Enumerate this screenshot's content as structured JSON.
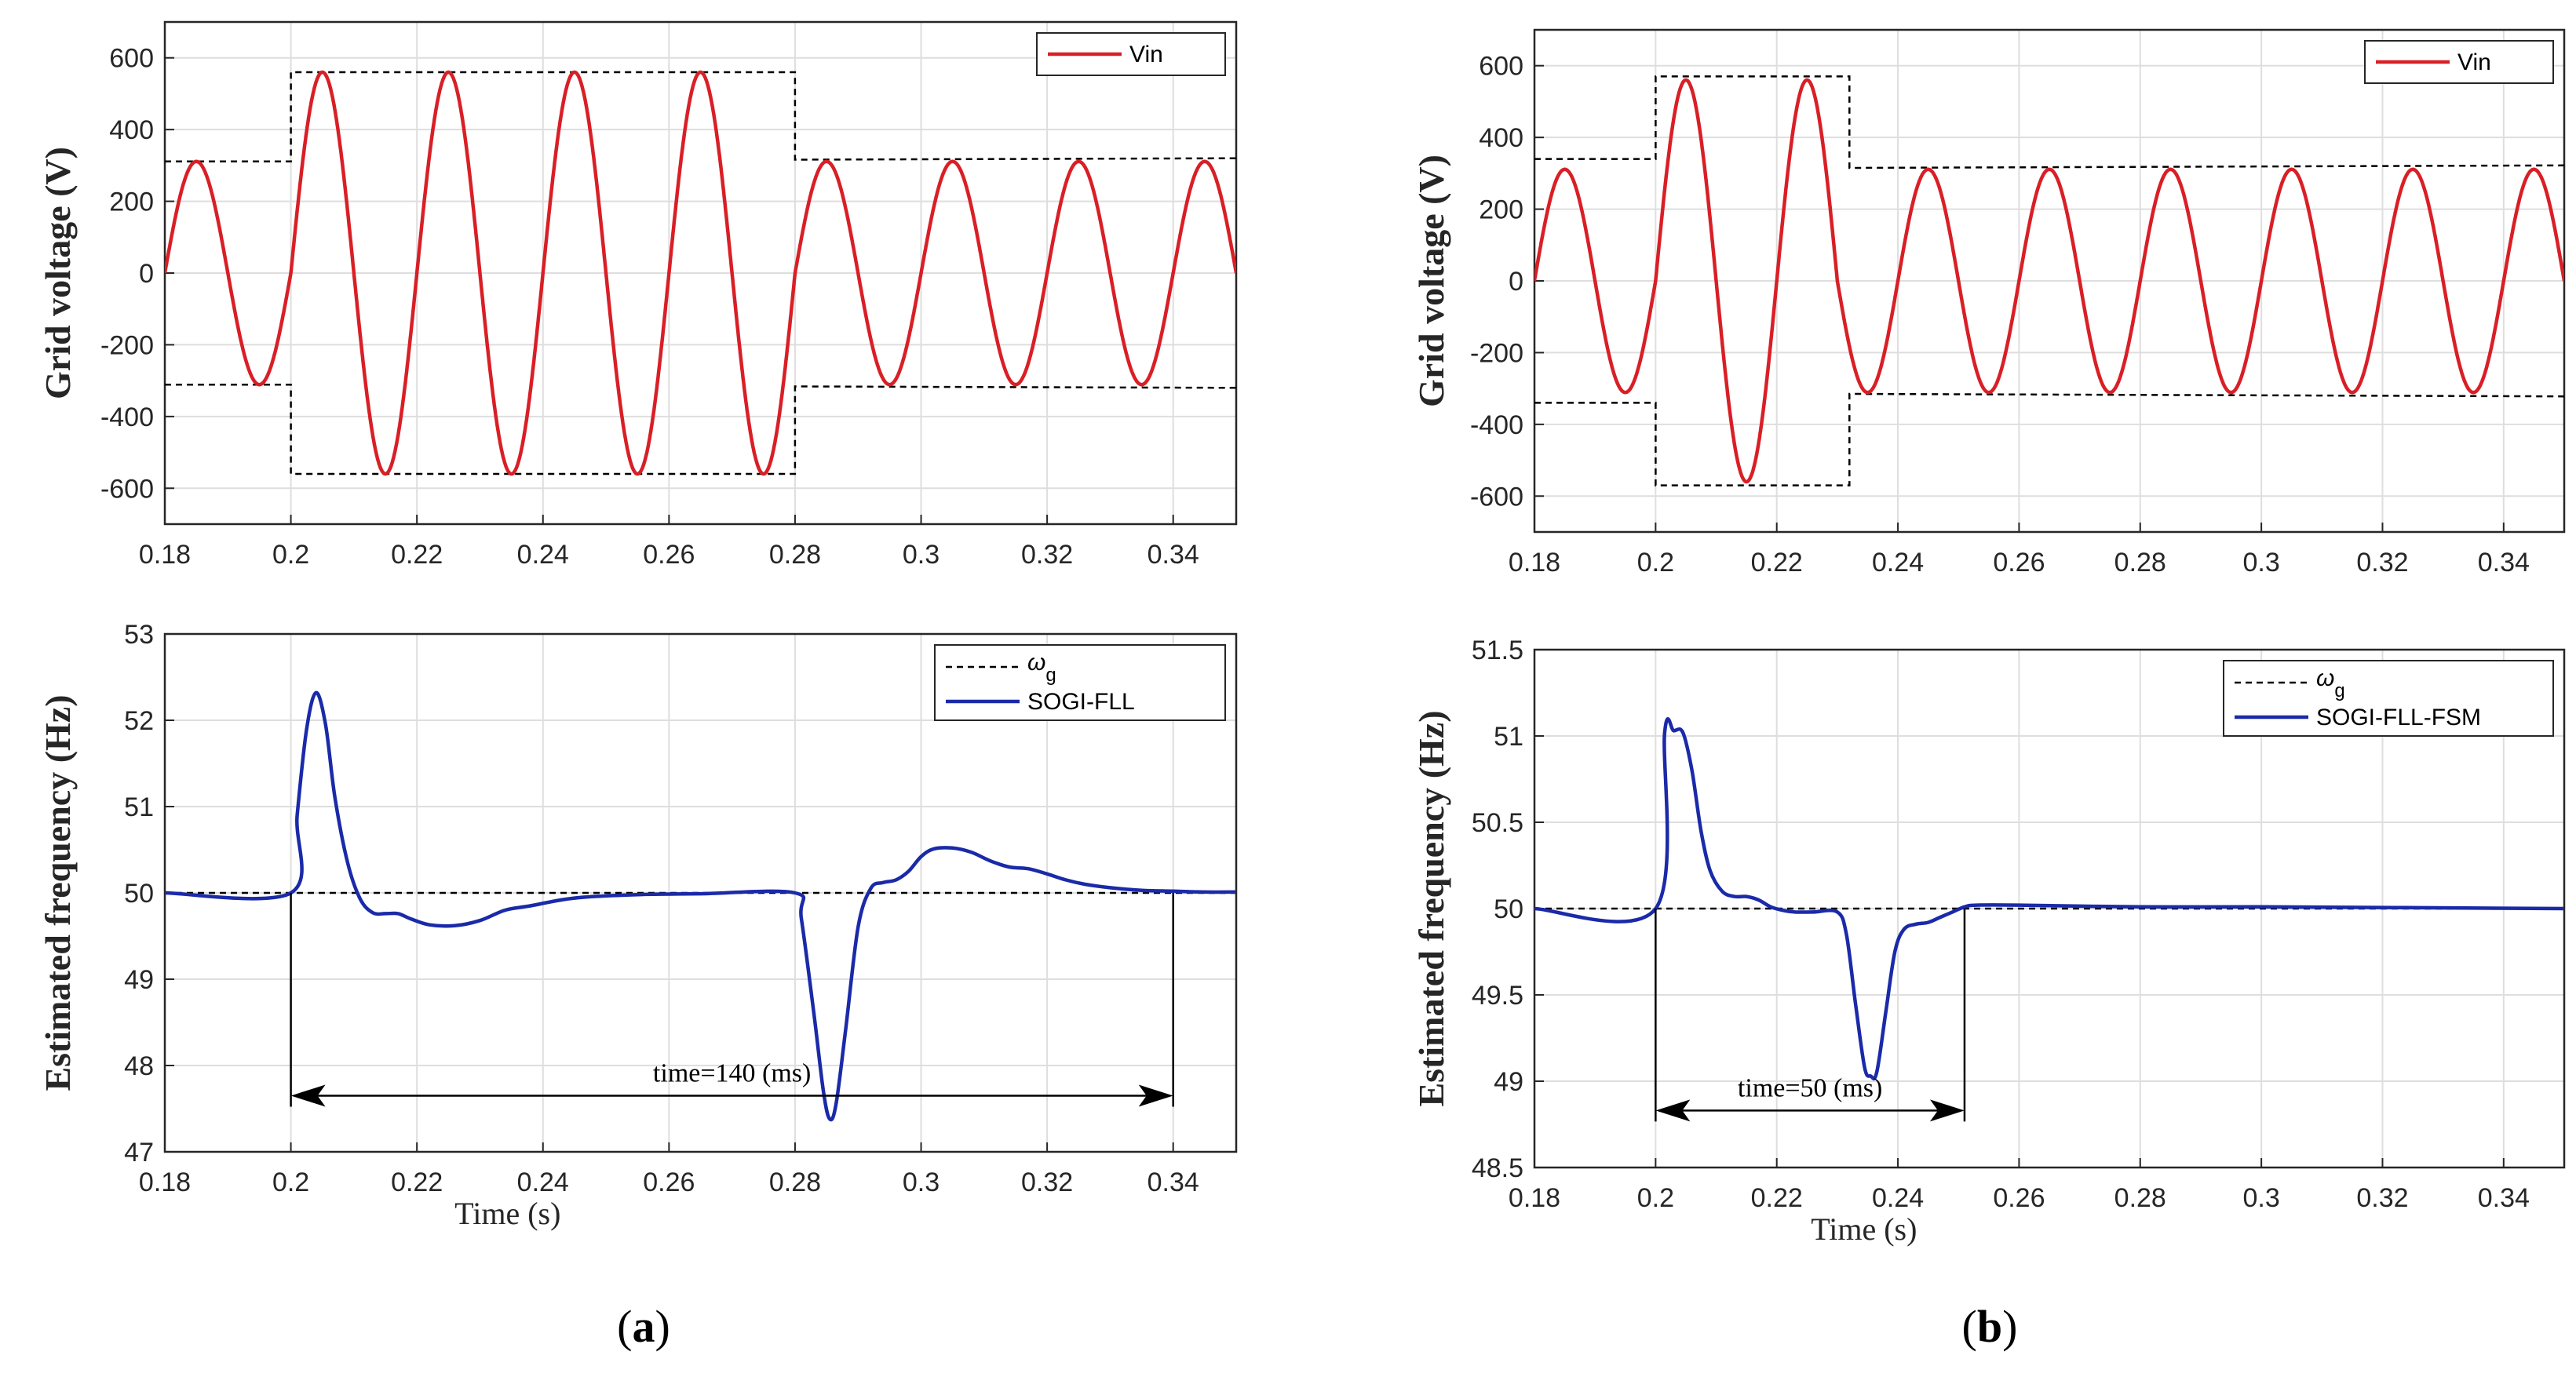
{
  "colors": {
    "vin": "#d91f26",
    "freq": "#1a2aa8",
    "ref": "#000000",
    "grid": "#dedede"
  },
  "chart_data": [
    {
      "type": "line",
      "key": "a_top",
      "ylabel": "Grid voltage (V)",
      "xlabel": "",
      "xlim": [
        0.18,
        0.35
      ],
      "ylim": [
        -700,
        700
      ],
      "xticks": [
        0.18,
        0.2,
        0.22,
        0.24,
        0.26,
        0.28,
        0.3,
        0.32,
        0.34
      ],
      "xtick_labels": [
        "0.18",
        "0.2",
        "0.22",
        "0.24",
        "0.26",
        "0.28",
        "0.3",
        "0.32",
        "0.34"
      ],
      "yticks": [
        -600,
        -400,
        -200,
        0,
        200,
        400,
        600
      ],
      "ytick_labels": [
        "-600",
        "-400",
        "-200",
        "0",
        "200",
        "400",
        "600"
      ],
      "grid": true,
      "legend": {
        "position": "top-right",
        "entries": [
          {
            "label": "Vin",
            "style": "vin"
          }
        ]
      },
      "signal": {
        "kind": "sine",
        "frequency_hz": 50,
        "segments": [
          [
            0.18,
            0.2,
            311
          ],
          [
            0.2,
            0.28,
            560
          ],
          [
            0.28,
            0.35,
            311
          ]
        ]
      },
      "envelope": [
        [
          0.18,
          311
        ],
        [
          0.2,
          311
        ],
        [
          0.2,
          560
        ],
        [
          0.28,
          560
        ],
        [
          0.28,
          316
        ],
        [
          0.35,
          320
        ]
      ]
    },
    {
      "type": "line",
      "key": "a_bot",
      "ylabel": "Estimated frequency (Hz)",
      "xlabel": "Time (s)",
      "xlim": [
        0.18,
        0.35
      ],
      "ylim": [
        47,
        53
      ],
      "xticks": [
        0.18,
        0.2,
        0.22,
        0.24,
        0.26,
        0.28,
        0.3,
        0.32,
        0.34
      ],
      "xtick_labels": [
        "0.18",
        "0.2",
        "0.22",
        "0.24",
        "0.26",
        "0.28",
        "0.3",
        "0.32",
        "0.34"
      ],
      "yticks": [
        47,
        48,
        49,
        50,
        51,
        52,
        53
      ],
      "ytick_labels": [
        "47",
        "48",
        "49",
        "50",
        "51",
        "52",
        "53"
      ],
      "grid": true,
      "legend": {
        "position": "top-right",
        "entries": [
          {
            "label": "ω",
            "sub": "g",
            "style": "ref"
          },
          {
            "label": "SOGI-FLL",
            "style": "freq"
          }
        ]
      },
      "reference": 50,
      "series": [
        {
          "name": "SOGI-FLL",
          "x": [
            0.18,
            0.2,
            0.201,
            0.2025,
            0.204,
            0.2055,
            0.207,
            0.209,
            0.211,
            0.213,
            0.215,
            0.217,
            0.219,
            0.222,
            0.226,
            0.23,
            0.234,
            0.238,
            0.245,
            0.255,
            0.265,
            0.28,
            0.281,
            0.283,
            0.2845,
            0.2855,
            0.2865,
            0.288,
            0.29,
            0.292,
            0.294,
            0.296,
            0.298,
            0.3,
            0.302,
            0.305,
            0.308,
            0.311,
            0.314,
            0.317,
            0.32,
            0.323,
            0.326,
            0.33,
            0.335,
            0.34,
            0.345,
            0.35
          ],
          "values": [
            50,
            50,
            50.9,
            51.9,
            52.32,
            51.95,
            51.1,
            50.35,
            49.93,
            49.77,
            49.76,
            49.76,
            49.7,
            49.63,
            49.62,
            49.68,
            49.8,
            49.85,
            49.94,
            49.98,
            49.99,
            50,
            49.7,
            48.6,
            47.7,
            47.38,
            47.55,
            48.4,
            49.6,
            50.05,
            50.12,
            50.15,
            50.25,
            50.42,
            50.51,
            50.52,
            50.47,
            50.37,
            50.3,
            50.28,
            50.22,
            50.15,
            50.1,
            50.06,
            50.03,
            50.02,
            50.01,
            50.01
          ]
        }
      ],
      "annotation": {
        "text": "time=140 (ms)",
        "x1": 0.2,
        "x2": 0.34,
        "y": 47.65,
        "bracket_top": 50
      }
    },
    {
      "type": "line",
      "key": "b_top",
      "ylabel": "Grid voltage (V)",
      "xlabel": "",
      "xlim": [
        0.18,
        0.35
      ],
      "ylim": [
        -700,
        700
      ],
      "xticks": [
        0.18,
        0.2,
        0.22,
        0.24,
        0.26,
        0.28,
        0.3,
        0.32,
        0.34
      ],
      "xtick_labels": [
        "0.18",
        "0.2",
        "0.22",
        "0.24",
        "0.26",
        "0.28",
        "0.3",
        "0.32",
        "0.34"
      ],
      "yticks": [
        -600,
        -400,
        -200,
        0,
        200,
        400,
        600
      ],
      "ytick_labels": [
        "-600",
        "-400",
        "-200",
        "0",
        "200",
        "400",
        "600"
      ],
      "grid": true,
      "legend": {
        "position": "top-right",
        "entries": [
          {
            "label": "Vin",
            "style": "vin"
          }
        ]
      },
      "signal": {
        "kind": "sine",
        "frequency_hz": 50,
        "segments": [
          [
            0.18,
            0.2,
            311
          ],
          [
            0.2,
            0.23,
            560
          ],
          [
            0.23,
            0.35,
            311
          ]
        ]
      },
      "envelope": [
        [
          0.18,
          340
        ],
        [
          0.2,
          340
        ],
        [
          0.2,
          570
        ],
        [
          0.232,
          570
        ],
        [
          0.232,
          315
        ],
        [
          0.35,
          322
        ]
      ]
    },
    {
      "type": "line",
      "key": "b_bot",
      "ylabel": "Estimated frequency (Hz)",
      "xlabel": "Time (s)",
      "xlim": [
        0.18,
        0.35
      ],
      "ylim": [
        48.5,
        51.5
      ],
      "xticks": [
        0.18,
        0.2,
        0.22,
        0.24,
        0.26,
        0.28,
        0.3,
        0.32,
        0.34
      ],
      "xtick_labels": [
        "0.18",
        "0.2",
        "0.22",
        "0.24",
        "0.26",
        "0.28",
        "0.3",
        "0.32",
        "0.34"
      ],
      "yticks": [
        48.5,
        49,
        49.5,
        50,
        50.5,
        51,
        51.5
      ],
      "ytick_labels": [
        "48.5",
        "49",
        "49.5",
        "50",
        "50.5",
        "51",
        "51.5"
      ],
      "grid": true,
      "legend": {
        "position": "top-right",
        "entries": [
          {
            "label": "ω",
            "sub": "g",
            "style": "ref"
          },
          {
            "label": "SOGI-FLL-FSM",
            "style": "freq"
          }
        ]
      },
      "reference": 50,
      "series": [
        {
          "name": "SOGI-FLL-FSM",
          "x": [
            0.18,
            0.2,
            0.2015,
            0.203,
            0.2045,
            0.206,
            0.2075,
            0.209,
            0.211,
            0.213,
            0.215,
            0.217,
            0.219,
            0.221,
            0.223,
            0.226,
            0.23,
            0.2315,
            0.233,
            0.2345,
            0.2355,
            0.2365,
            0.238,
            0.2395,
            0.241,
            0.243,
            0.245,
            0.247,
            0.249,
            0.251,
            0.253,
            0.26,
            0.28,
            0.3,
            0.35
          ],
          "values": [
            50,
            50,
            51.02,
            51.03,
            51.02,
            50.8,
            50.45,
            50.22,
            50.1,
            50.07,
            50.07,
            50.05,
            50.01,
            49.99,
            49.98,
            49.98,
            49.98,
            49.85,
            49.45,
            49.08,
            49.03,
            49.05,
            49.4,
            49.75,
            49.88,
            49.91,
            49.92,
            49.95,
            49.98,
            50.01,
            50.02,
            50.02,
            50.01,
            50.01,
            50
          ]
        }
      ],
      "annotation": {
        "text": "time=50 (ms)",
        "x1": 0.2,
        "x2": 0.251,
        "y": 48.83,
        "bracket_top": 50
      }
    }
  ],
  "panel_labels": {
    "a": "a",
    "b": "b",
    "open": "(",
    "close": ")"
  }
}
